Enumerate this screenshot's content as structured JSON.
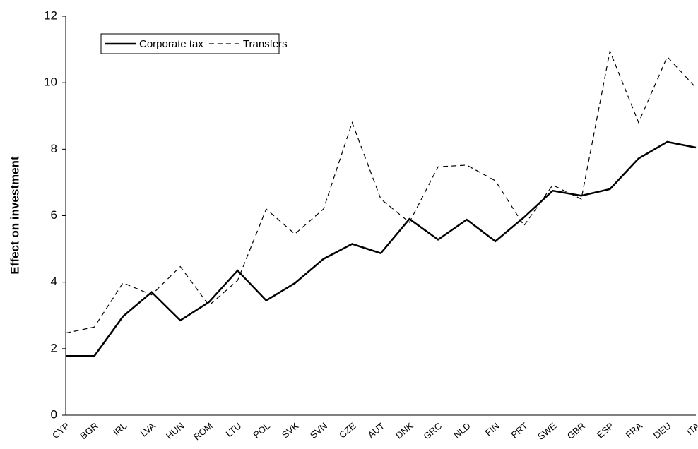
{
  "chart_data": {
    "type": "line",
    "y_label": "Effect on investment",
    "categories": [
      "CYP",
      "BGR",
      "IRL",
      "LVA",
      "HUN",
      "ROM",
      "LTU",
      "POL",
      "SVK",
      "SVN",
      "CZE",
      "AUT",
      "DNK",
      "GRC",
      "NLD",
      "FIN",
      "PRT",
      "SWE",
      "GBR",
      "ESP",
      "FRA",
      "DEU",
      "ITA"
    ],
    "series": [
      {
        "name": "Corporate tax",
        "color": "#000000",
        "style": "solid",
        "values": [
          1.78,
          1.78,
          2.97,
          3.7,
          2.85,
          3.4,
          4.35,
          3.45,
          3.97,
          4.7,
          5.15,
          4.87,
          5.9,
          5.28,
          5.88,
          5.23,
          5.95,
          6.75,
          6.6,
          6.8,
          7.72,
          8.22,
          8.05
        ]
      },
      {
        "name": "Transfers",
        "color": "#000000",
        "style": "dashed",
        "values": [
          2.47,
          2.65,
          3.98,
          3.62,
          4.47,
          3.3,
          4.05,
          6.2,
          5.45,
          6.2,
          8.8,
          6.5,
          5.8,
          7.47,
          7.52,
          7.05,
          5.7,
          6.92,
          6.5,
          10.95,
          8.8,
          10.78,
          9.85
        ]
      }
    ],
    "ylim": [
      0,
      12
    ],
    "yticks": [
      0,
      2,
      4,
      6,
      8,
      10,
      12
    ],
    "grid": false,
    "legend": "top-left"
  }
}
